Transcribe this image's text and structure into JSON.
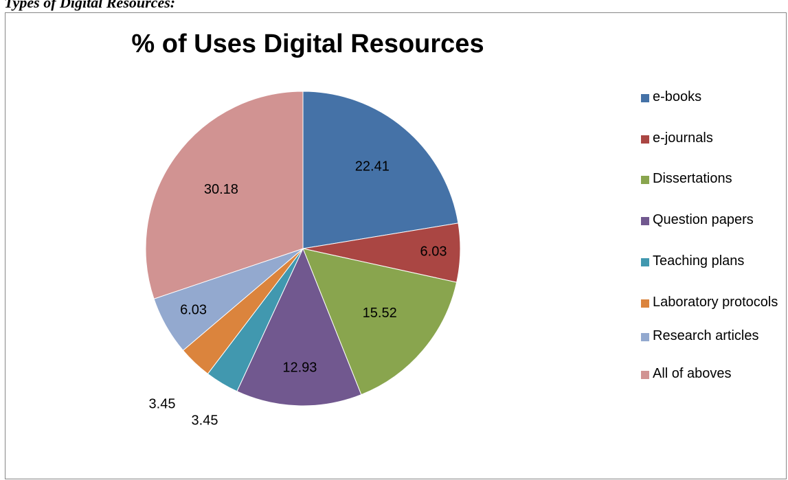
{
  "caption": "Types of Digital Resources:",
  "chart_data": {
    "type": "pie",
    "title": "% of Uses Digital Resources",
    "categories": [
      "e-books",
      "e-journals",
      "Dissertations",
      "Question papers",
      "Teaching plans",
      "Laboratory protocols",
      "Research articles",
      "All of aboves"
    ],
    "values": [
      22.41,
      6.03,
      15.52,
      12.93,
      3.45,
      3.45,
      6.03,
      30.18
    ],
    "data_labels": [
      "22.41",
      "6.03",
      "15.52",
      "12.93",
      "3.45",
      "3.45",
      "6.03",
      "30.18"
    ],
    "colors": [
      "#4572A7",
      "#AA4643",
      "#89A54E",
      "#71588F",
      "#4198AF",
      "#DB843D",
      "#93A9CF",
      "#D19392"
    ],
    "start_angle": "12 o'clock",
    "direction": "clockwise",
    "legend_position": "right"
  }
}
